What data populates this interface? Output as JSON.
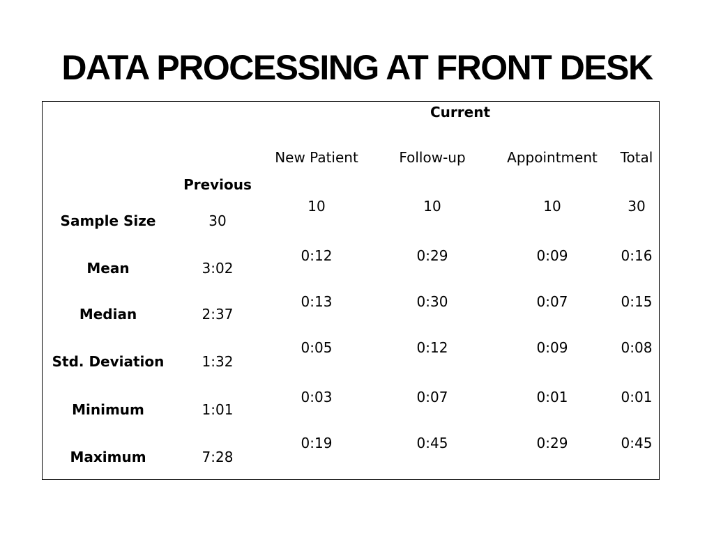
{
  "slide": {
    "title": "DATA PROCESSING AT FRONT DESK"
  },
  "table": {
    "current_header": "Current",
    "previous_header": "Previous",
    "columns": [
      "New Patient",
      "Follow-up",
      "Appointment",
      "Total"
    ],
    "rows": [
      {
        "label": "Sample Size",
        "previous": "30",
        "current": [
          "10",
          "10",
          "10",
          "30"
        ]
      },
      {
        "label": "Mean",
        "previous": "3:02",
        "current": [
          "0:12",
          "0:29",
          "0:09",
          "0:16"
        ]
      },
      {
        "label": "Median",
        "previous": "2:37",
        "current": [
          "0:13",
          "0:30",
          "0:07",
          "0:15"
        ]
      },
      {
        "label": "Std. Deviation",
        "previous": "1:32",
        "current": [
          "0:05",
          "0:12",
          "0:09",
          "0:08"
        ]
      },
      {
        "label": "Minimum",
        "previous": "1:01",
        "current": [
          "0:03",
          "0:07",
          "0:01",
          "0:01"
        ]
      },
      {
        "label": "Maximum",
        "previous": "7:28",
        "current": [
          "0:19",
          "0:45",
          "0:29",
          "0:45"
        ]
      }
    ]
  }
}
